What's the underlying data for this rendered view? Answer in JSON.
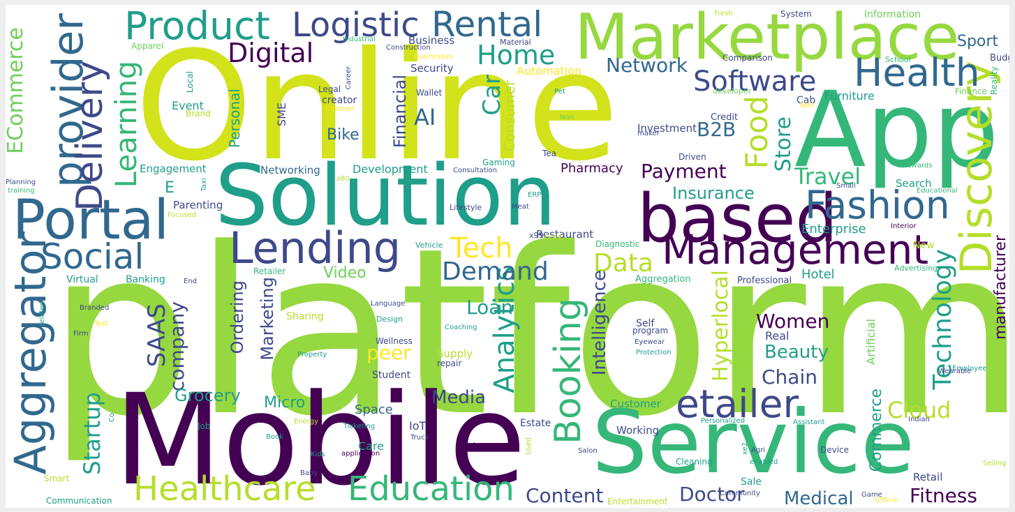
{
  "palette": {
    "dark-purple": "#440154",
    "indigo": "#482878",
    "slate-blue": "#3e4989",
    "steel-blue": "#31688e",
    "teal-blue": "#26828e",
    "teal": "#1f9e89",
    "green": "#35b779",
    "light-green": "#6ece58",
    "yellow-green": "#b5de2b",
    "yellow": "#fde725",
    "lime": "#96d840",
    "chartreuse": "#d2e21b"
  },
  "words": [
    "platform",
    "Online",
    "Mobile",
    "Service",
    "App",
    "Solution",
    "Marketplace",
    "based",
    "Management",
    "Portal",
    "Aggregator",
    "provider",
    "Discovery",
    "Lending",
    "etailer",
    "Fashion",
    "Health",
    "Product",
    "Rental",
    "Logistic",
    "Delivery",
    "Booking",
    "Healthcare",
    "Education",
    "Social",
    "Software",
    "Digital",
    "Home",
    "Food",
    "Learning",
    "Tech",
    "Analytics",
    "ECommerce",
    "Technology",
    "Demand",
    "Startup",
    "SAAS",
    "company",
    "Data",
    "Travel",
    "Store",
    "Car",
    "AI",
    "B2B",
    "Payment",
    "Network",
    "Cloud",
    "Fitness",
    "Content",
    "Doctor",
    "Medical",
    "Chain",
    "Beauty",
    "Women",
    "Loan",
    "Insurance",
    "Hyperlocal",
    "Video",
    "Media",
    "Grocery",
    "Micro",
    "Marketing",
    "Ordering",
    "Intelligence",
    "peer",
    "Financial",
    "Bike",
    "Sport",
    "Consumer",
    "Personal",
    "Commerce",
    "manufacturer",
    "E",
    "Enterprise",
    "Restaurant",
    "Pharmacy",
    "Development",
    "Networking",
    "Engagement",
    "Parenting",
    "Event",
    "SME",
    "Security",
    "Business",
    "Automation",
    "Furniture",
    "Investment",
    "Credit",
    "Cab",
    "Search",
    "Hotel",
    "Real",
    "Self",
    "Space",
    "Care",
    "IoT",
    "Estate",
    "Customer",
    "Working",
    "Retail",
    "Sale",
    "Supply",
    "Student",
    "Wellness",
    "Sharing",
    "Banking",
    "Virtual",
    "Retailer",
    "Aggregation",
    "Professional",
    "Diagnostic",
    "New",
    "Information",
    "System",
    "Fresh",
    "Budget",
    "Apparel",
    "Industrial",
    "Construction",
    "Material",
    "Businesses",
    "Comparison",
    "School",
    "Reality",
    "Finance",
    "Skill",
    "Pet",
    "developer",
    "Wallet",
    "Legal",
    "Career",
    "creator",
    "Children",
    "Local",
    "Brand",
    "Non",
    "maker",
    "Driven",
    "Tea",
    "Gaming",
    "Consultation",
    "Rewards",
    "Planning",
    "training",
    "Taxi",
    "x80",
    "Small",
    "Educational",
    "ERP",
    "Lifestyle",
    "Meat",
    "Focused",
    "x99",
    "Fund",
    "Vehicle",
    "Interior",
    "End",
    "Advertising",
    "related",
    "Branded",
    "Test",
    "Firm",
    "Language",
    "Design",
    "Coaching",
    "program",
    "Eyewear",
    "Protection",
    "Property",
    "repair",
    "Artificial",
    "Employee",
    "Wearable",
    "Job",
    "Co",
    "Energy",
    "Ticketing",
    "Book",
    "Truck",
    "Used",
    "Private",
    "Personalized",
    "Assistant",
    "Indian",
    "Kids",
    "application",
    "Salon",
    "xe2",
    "Device",
    "Agri",
    "Cleaning",
    "enabled",
    "Smart",
    "Baby",
    "Communication",
    "Entertainment",
    "Community",
    "Game",
    "Offline",
    "Selling"
  ]
}
